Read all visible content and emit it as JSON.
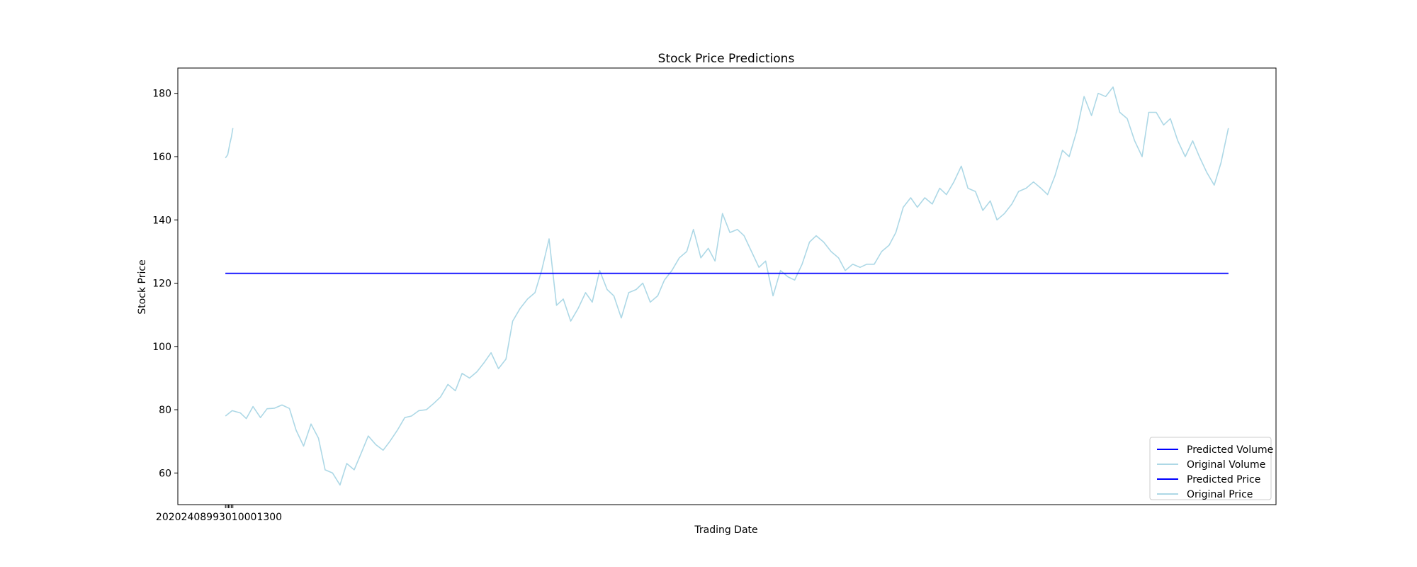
{
  "chart_data": {
    "type": "line",
    "title": "Stock Price Predictions",
    "xlabel": "Trading Date",
    "ylabel": "Stock Price",
    "ylim": [
      50,
      188
    ],
    "xlim": [
      -64,
      1412
    ],
    "grid": false,
    "legend_position": "lower-right",
    "y_ticks": [
      60,
      80,
      100,
      120,
      140,
      160,
      180
    ],
    "x_tick_labels_overlapping": "20202408993010001300",
    "colors": {
      "predicted": "#0000ff",
      "original": "#add8e6"
    },
    "legend": [
      "Predicted Volume",
      "Original Volume",
      "Predicted Price",
      "Original Price"
    ],
    "series": [
      {
        "name": "Predicted Volume",
        "color": "#0000ff",
        "x": [
          0,
          1348
        ],
        "y": [
          123.1,
          123.1
        ]
      },
      {
        "name": "Original Volume",
        "color": "#add8e6",
        "x": [
          0,
          3,
          6,
          8,
          10
        ],
        "y": [
          159.6,
          160.6,
          164.2,
          166.2,
          169.0
        ]
      },
      {
        "name": "Predicted Price",
        "color": "#0000ff",
        "x": [
          0,
          1348
        ],
        "y": [
          123.1,
          123.1
        ]
      },
      {
        "name": "Original Price",
        "color": "#add8e6",
        "x": [
          0,
          9,
          20,
          28,
          37,
          47,
          56,
          66,
          76,
          86,
          95,
          105,
          115,
          125,
          134,
          144,
          154,
          163,
          173,
          182,
          192,
          202,
          212,
          221,
          231,
          241,
          250,
          260,
          270,
          280,
          289,
          299,
          309,
          318,
          328,
          338,
          348,
          357,
          367,
          377,
          386,
          396,
          406,
          416,
          425,
          435,
          445,
          454,
          464,
          474,
          484,
          493,
          503,
          513,
          522,
          532,
          542,
          552,
          561,
          571,
          581,
          590,
          600,
          610,
          620,
          629,
          639,
          649,
          658,
          668,
          678,
          688,
          697,
          707,
          717,
          726,
          736,
          746,
          756,
          765,
          775,
          785,
          794,
          804,
          814,
          824,
          833,
          843,
          853,
          862,
          872,
          882,
          892,
          901,
          911,
          921,
          930,
          940,
          950,
          960,
          969,
          979,
          989,
          998,
          1008,
          1018,
          1028,
          1037,
          1047,
          1057,
          1066,
          1076,
          1086,
          1096,
          1105,
          1115,
          1125,
          1134,
          1144,
          1154,
          1164,
          1173,
          1183,
          1193,
          1202,
          1212,
          1222,
          1232,
          1241,
          1251,
          1261,
          1270,
          1280,
          1290,
          1300,
          1309,
          1319,
          1329,
          1338,
          1348
        ],
        "y": [
          78.0,
          79.7,
          79.0,
          77.2,
          81.0,
          77.5,
          80.3,
          80.5,
          81.5,
          80.4,
          73.5,
          68.5,
          75.5,
          71.0,
          61.0,
          60.0,
          56.2,
          63.0,
          61.0,
          66.0,
          71.7,
          69.0,
          67.2,
          70.0,
          73.5,
          77.5,
          78.0,
          79.7,
          80.0,
          82.0,
          84.0,
          88.0,
          86.0,
          91.5,
          90.0,
          92.0,
          95.0,
          98.0,
          93.0,
          96.0,
          108.0,
          112.0,
          115.0,
          117.0,
          124.0,
          134.0,
          113.0,
          115.0,
          108.0,
          112.0,
          117.0,
          114.0,
          124.0,
          118.0,
          116.0,
          109.0,
          117.0,
          118.0,
          120.0,
          114.0,
          116.0,
          121.0,
          124.0,
          128.0,
          130.0,
          137.0,
          128.0,
          131.0,
          127.0,
          142.0,
          136.0,
          137.0,
          135.0,
          130.0,
          125.0,
          127.0,
          116.0,
          124.0,
          122.0,
          121.0,
          126.0,
          133.0,
          135.0,
          133.0,
          130.0,
          128.0,
          124.0,
          126.0,
          125.0,
          126.0,
          126.0,
          130.0,
          132.0,
          136.0,
          144.0,
          147.0,
          144.0,
          147.0,
          145.0,
          150.0,
          148.0,
          152.0,
          157.0,
          150.0,
          149.0,
          143.0,
          146.0,
          140.0,
          142.0,
          145.0,
          149.0,
          150.0,
          152.0,
          150.0,
          148.0,
          154.0,
          162.0,
          160.0,
          168.0,
          179.0,
          173.0,
          180.0,
          179.0,
          182.0,
          174.0,
          172.0,
          165.0,
          160.0,
          174.0,
          174.0,
          170.0,
          172.0,
          165.0,
          160.0,
          165.0,
          160.0,
          155.0,
          151.0,
          158.0,
          169.0
        ]
      }
    ]
  }
}
